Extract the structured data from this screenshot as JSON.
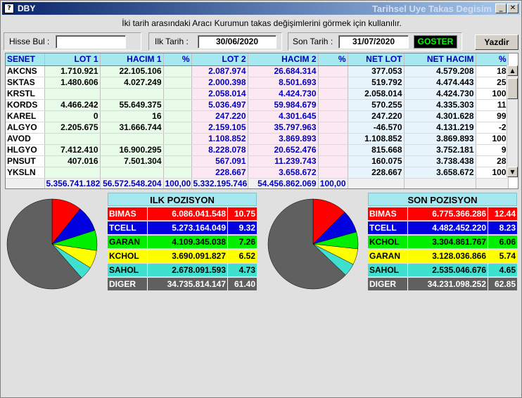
{
  "window": {
    "title": "DBY",
    "subtitle": "Tarihsel Uye Takas Degisim",
    "icon": "?"
  },
  "description": "İki tarih arasındaki  Aracı Kurumun takas değişimlerini görmek için kullanılır.",
  "toolbar": {
    "hisse_label": "Hisse Bul :",
    "hisse_value": "",
    "ilk_label": "Ilk Tarih :",
    "ilk_value": "30/06/2020",
    "son_label": "Son Tarih :",
    "son_value": "31/07/2020",
    "goster_label": "GOSTER",
    "yazdir_label": "Yazdir"
  },
  "grid": {
    "headers": [
      "SENET",
      "LOT 1",
      "HACIM 1",
      "%",
      "LOT 2",
      "HACIM 2",
      "%",
      "NET LOT",
      "NET HACIM",
      "%"
    ],
    "rows": [
      [
        "AKCNS",
        "1.710.921",
        "22.105.106",
        "",
        "2.087.974",
        "26.684.314",
        "",
        "377.053",
        "4.579.208",
        "18"
      ],
      [
        "SKTAS",
        "1.480.606",
        "4.027.249",
        "",
        "2.000.398",
        "8.501.693",
        "",
        "519.792",
        "4.474.443",
        "25"
      ],
      [
        "KRSTL",
        "",
        "",
        "",
        "2.058.014",
        "4.424.730",
        "",
        "2.058.014",
        "4.424.730",
        "100"
      ],
      [
        "KORDS",
        "4.466.242",
        "55.649.375",
        "",
        "5.036.497",
        "59.984.679",
        "",
        "570.255",
        "4.335.303",
        "11"
      ],
      [
        "KAREL",
        "0",
        "16",
        "",
        "247.220",
        "4.301.645",
        "",
        "247.220",
        "4.301.628",
        "99"
      ],
      [
        "ALGYO",
        "2.205.675",
        "31.666.744",
        "",
        "2.159.105",
        "35.797.963",
        "",
        "-46.570",
        "4.131.219",
        "-2"
      ],
      [
        "AVOD",
        "",
        "",
        "",
        "1.108.852",
        "3.869.893",
        "",
        "1.108.852",
        "3.869.893",
        "100"
      ],
      [
        "HLGYO",
        "7.412.410",
        "16.900.295",
        "",
        "8.228.078",
        "20.652.476",
        "",
        "815.668",
        "3.752.181",
        "9"
      ],
      [
        "PNSUT",
        "407.016",
        "7.501.304",
        "",
        "567.091",
        "11.239.743",
        "",
        "160.075",
        "3.738.438",
        "28"
      ],
      [
        "YKSLN",
        "",
        "",
        "",
        "228.667",
        "3.658.672",
        "",
        "228.667",
        "3.658.672",
        "100"
      ]
    ],
    "totals": [
      "",
      "5.356.741.182",
      "56.572.548.204",
      "100,00",
      "5.332.195.746",
      "54.456.862.069",
      "100,00",
      "",
      "",
      ""
    ]
  },
  "ilk_pozisyon": {
    "title": "ILK POZISYON",
    "items": [
      {
        "name": "BIMAS",
        "value": "6.086.041.548",
        "pct": "10.75",
        "pct_value": 10.75,
        "color": "#ff0000",
        "text": "#ffffff"
      },
      {
        "name": "TCELL",
        "value": "5.273.164.049",
        "pct": "9.32",
        "pct_value": 9.32,
        "color": "#0000e0",
        "text": "#ffffff"
      },
      {
        "name": "GARAN",
        "value": "4.109.345.038",
        "pct": "7.26",
        "pct_value": 7.26,
        "color": "#00ee00",
        "text": "#000000"
      },
      {
        "name": "KCHOL",
        "value": "3.690.091.827",
        "pct": "6.52",
        "pct_value": 6.52,
        "color": "#ffff00",
        "text": "#000000"
      },
      {
        "name": "SAHOL",
        "value": "2.678.091.593",
        "pct": "4.73",
        "pct_value": 4.73,
        "color": "#40e0d0",
        "text": "#000000"
      },
      {
        "name": "DIGER",
        "value": "34.735.814.147",
        "pct": "61.40",
        "pct_value": 61.4,
        "color": "#606060",
        "text": "#ffffff"
      }
    ]
  },
  "son_pozisyon": {
    "title": "SON POZISYON",
    "items": [
      {
        "name": "BIMAS",
        "value": "6.775.366.286",
        "pct": "12.44",
        "pct_value": 12.44,
        "color": "#ff0000",
        "text": "#ffffff"
      },
      {
        "name": "TCELL",
        "value": "4.482.452.220",
        "pct": "8.23",
        "pct_value": 8.23,
        "color": "#0000e0",
        "text": "#ffffff"
      },
      {
        "name": "KCHOL",
        "value": "3.304.861.767",
        "pct": "6.06",
        "pct_value": 6.06,
        "color": "#00ee00",
        "text": "#000000"
      },
      {
        "name": "GARAN",
        "value": "3.128.036.866",
        "pct": "5.74",
        "pct_value": 5.74,
        "color": "#ffff00",
        "text": "#000000"
      },
      {
        "name": "SAHOL",
        "value": "2.535.046.676",
        "pct": "4.65",
        "pct_value": 4.65,
        "color": "#40e0d0",
        "text": "#000000"
      },
      {
        "name": "DIGER",
        "value": "34.231.098.252",
        "pct": "62.85",
        "pct_value": 62.85,
        "color": "#606060",
        "text": "#ffffff"
      }
    ]
  }
}
